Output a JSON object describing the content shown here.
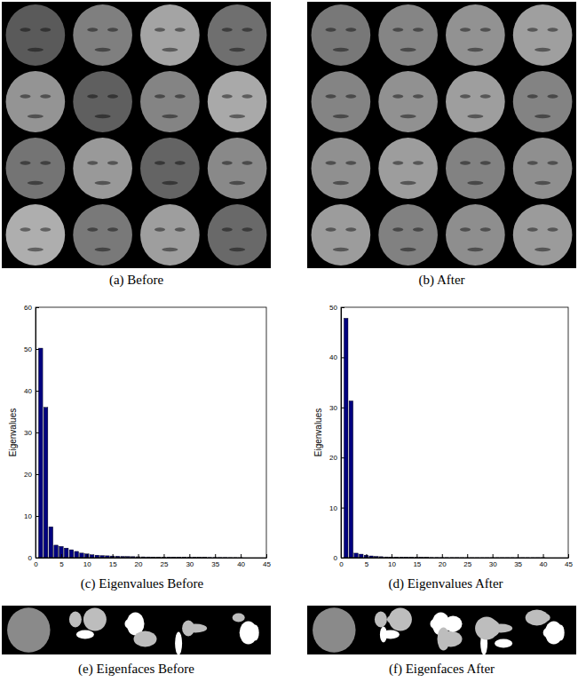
{
  "chart_data": [
    {
      "type": "bar",
      "title": "(c) Eigenvalues Before",
      "y_label": "Eigenvalues",
      "color": "#00007f",
      "x": [
        1,
        2,
        3,
        4,
        5,
        6,
        7,
        8,
        9,
        10,
        11,
        12,
        13,
        14,
        15,
        16,
        17,
        18,
        19,
        20,
        21,
        22,
        23,
        24,
        25,
        26,
        27,
        28,
        29,
        30,
        31,
        32,
        33,
        34,
        35,
        36,
        37,
        38,
        39,
        40
      ],
      "values": [
        50.2,
        36,
        7.4,
        3.0,
        2.7,
        2.3,
        1.9,
        1.5,
        1.1,
        0.9,
        0.7,
        0.6,
        0.5,
        0.45,
        0.4,
        0.35,
        0.3,
        0.28,
        0.25,
        0.22,
        0.2,
        0.18,
        0.16,
        0.14,
        0.12,
        0.11,
        0.1,
        0.09,
        0.08,
        0.07,
        0.06,
        0.05,
        0.05,
        0.04,
        0.04,
        0.03,
        0.03,
        0.02,
        0.02,
        0.01
      ],
      "xlim": [
        0,
        45
      ],
      "xticks": [
        0,
        5,
        10,
        15,
        20,
        25,
        30,
        35,
        40,
        45
      ],
      "ylim": [
        0,
        60
      ],
      "yticks": [
        0,
        10,
        20,
        30,
        40,
        50,
        60
      ],
      "grid": false
    },
    {
      "type": "bar",
      "title": "(d) Eigenvalues After",
      "y_label": "Eigenvalues",
      "color": "#00007f",
      "x": [
        1,
        2,
        3,
        4,
        5,
        6,
        7,
        8,
        9,
        10,
        11,
        12,
        13,
        14,
        15,
        16,
        17,
        18,
        19,
        20,
        21,
        22,
        23,
        24,
        25,
        26,
        27,
        28,
        29,
        30,
        31,
        32,
        33,
        34,
        35,
        36,
        37,
        38,
        39,
        40
      ],
      "values": [
        47.8,
        31.3,
        0.9,
        0.7,
        0.5,
        0.35,
        0.25,
        0.2,
        0.15,
        0.12,
        0.1,
        0.08,
        0.07,
        0.06,
        0.05,
        0.04,
        0.04,
        0.03,
        0.03,
        0.02,
        0.02,
        0.02,
        0.02,
        0.01,
        0.01,
        0.01,
        0.01,
        0.01,
        0.01,
        0.01,
        0.01,
        0.01,
        0.01,
        0.01,
        0.01,
        0.01,
        0.01,
        0.01,
        0.01,
        0.01
      ],
      "xlim": [
        0,
        45
      ],
      "xticks": [
        0,
        5,
        10,
        15,
        20,
        25,
        30,
        35,
        40,
        45
      ],
      "ylim": [
        0,
        50
      ],
      "yticks": [
        0,
        10,
        20,
        30,
        40,
        50
      ],
      "grid": false
    }
  ],
  "image_panels": [
    {
      "caption": "(a) Before"
    },
    {
      "caption": "(b) After"
    },
    {
      "caption": "(e) Eigenfaces Before"
    },
    {
      "caption": "(f) Eigenfaces After"
    }
  ]
}
